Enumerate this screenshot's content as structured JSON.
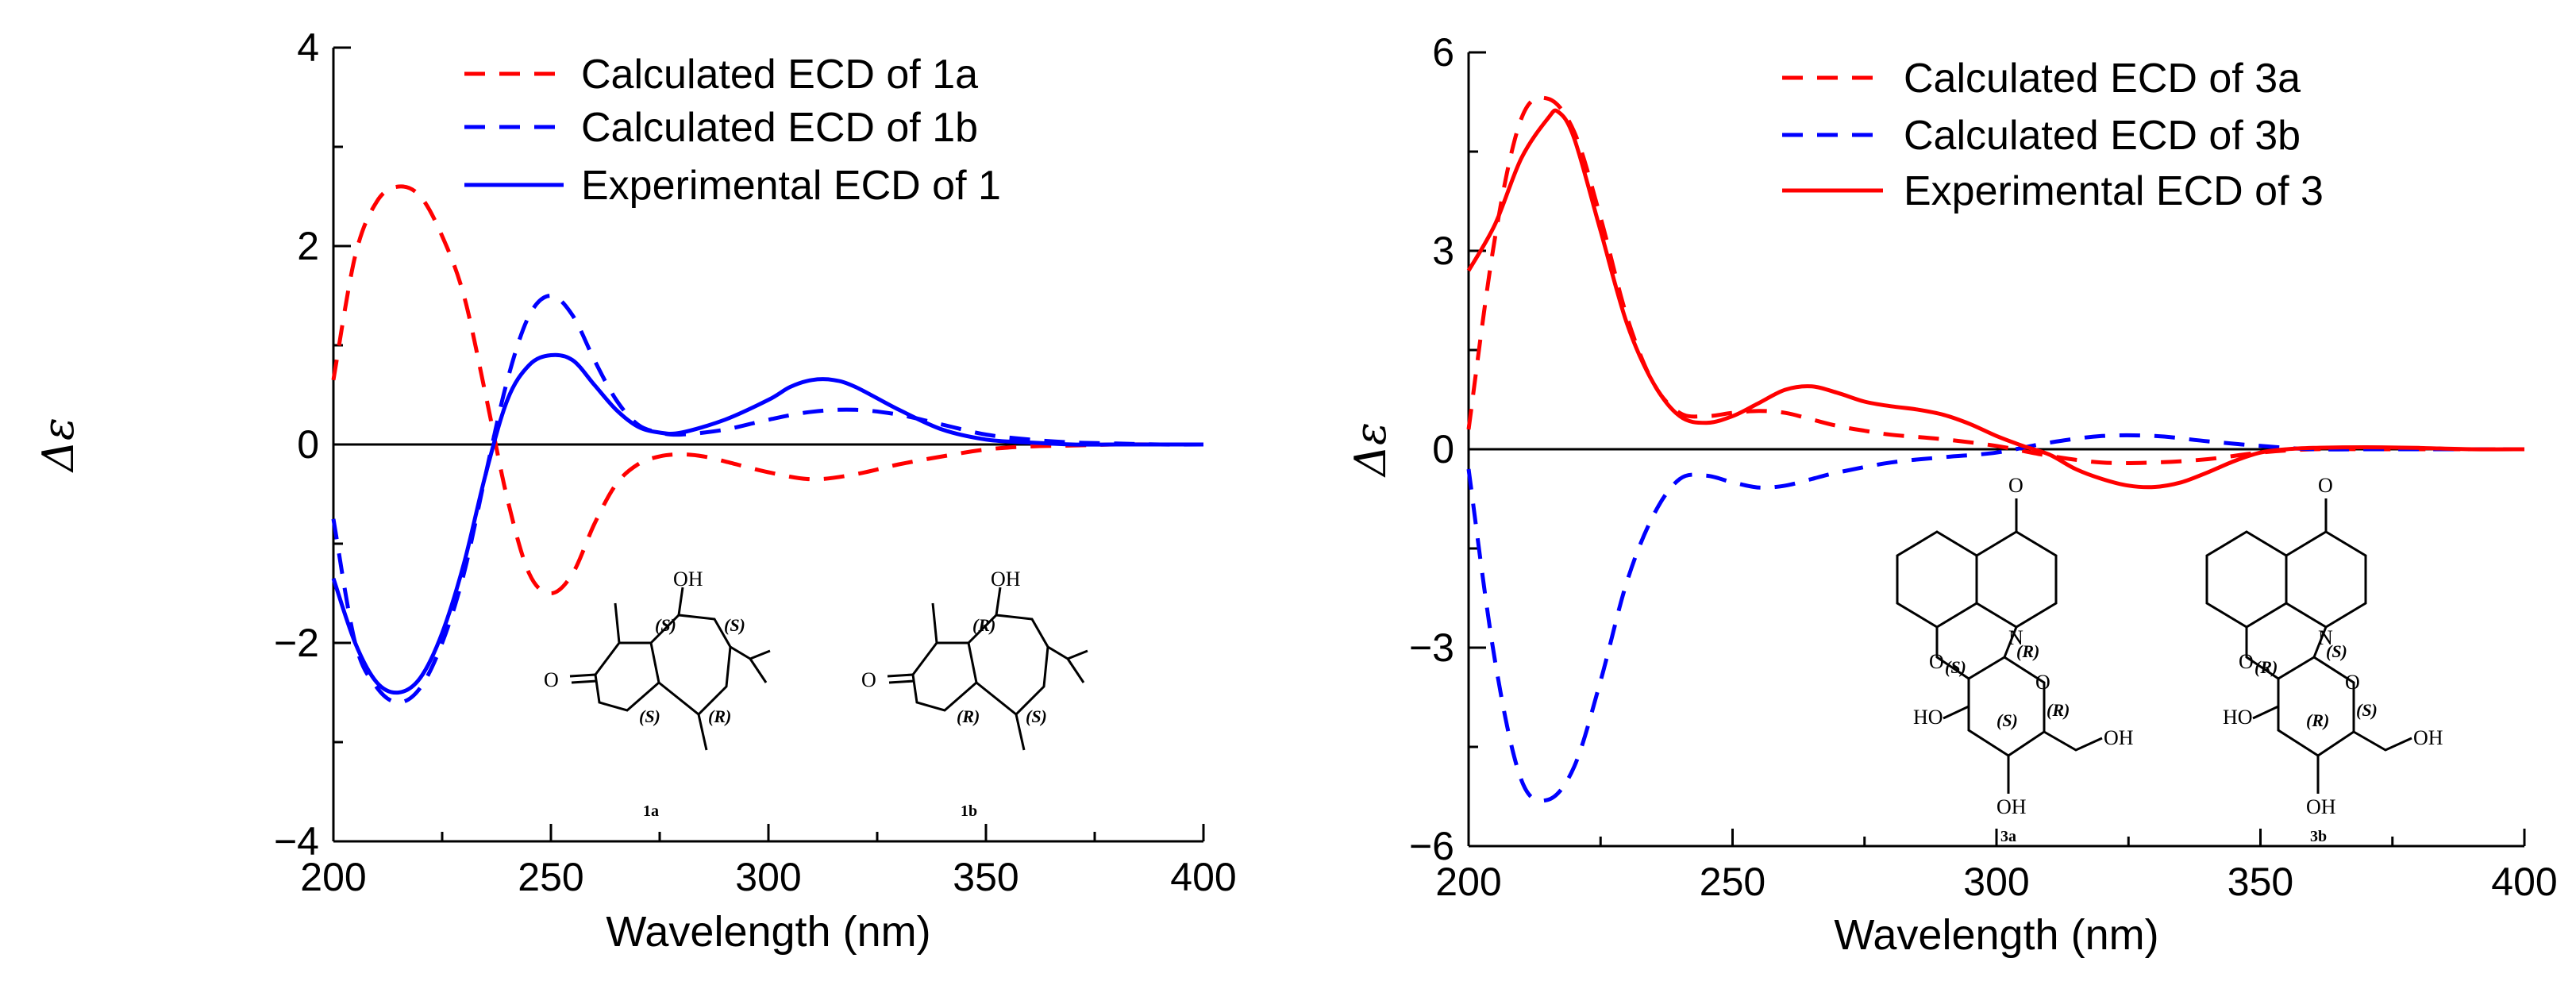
{
  "colors": {
    "red": "#ff0000",
    "blue": "#0000ff",
    "axis": "#000000"
  },
  "chart_data": [
    {
      "type": "line",
      "title": "",
      "xlabel": "Wavelength (nm)",
      "ylabel": "Δε",
      "xlim": [
        200,
        400
      ],
      "ylim": [
        -4,
        4
      ],
      "xticks": [
        200,
        250,
        300,
        350,
        400
      ],
      "yticks": [
        -4,
        -2,
        0,
        2,
        4
      ],
      "xtick_labels": [
        "200",
        "250",
        "300",
        "350",
        "400"
      ],
      "ytick_labels": [
        "−4",
        "−2",
        "0",
        "2",
        "4"
      ],
      "legend": {
        "position": "top-right"
      },
      "series": [
        {
          "name": "Calculated ECD of 1a",
          "color": "#ff0000",
          "style": "dashed",
          "x": [
            200,
            205,
            210,
            215,
            220,
            225,
            230,
            235,
            240,
            245,
            250,
            255,
            260,
            265,
            270,
            275,
            280,
            285,
            290,
            300,
            310,
            320,
            330,
            340,
            350,
            360,
            370,
            380,
            390,
            400
          ],
          "y": [
            0.65,
            1.9,
            2.45,
            2.6,
            2.5,
            2.1,
            1.5,
            0.5,
            -0.55,
            -1.3,
            -1.5,
            -1.3,
            -0.8,
            -0.4,
            -0.2,
            -0.12,
            -0.1,
            -0.12,
            -0.17,
            -0.28,
            -0.35,
            -0.3,
            -0.2,
            -0.12,
            -0.05,
            -0.02,
            -0.01,
            0,
            0,
            0
          ]
        },
        {
          "name": "Calculated ECD of 1b",
          "color": "#0000ff",
          "style": "dashed",
          "x": [
            200,
            205,
            210,
            215,
            220,
            225,
            230,
            235,
            240,
            245,
            250,
            255,
            260,
            265,
            270,
            275,
            280,
            290,
            300,
            310,
            320,
            330,
            340,
            350,
            360,
            370,
            380,
            390,
            400
          ],
          "y": [
            -0.75,
            -2.0,
            -2.45,
            -2.6,
            -2.45,
            -2.0,
            -1.3,
            -0.3,
            0.65,
            1.3,
            1.5,
            1.3,
            0.85,
            0.45,
            0.2,
            0.12,
            0.1,
            0.15,
            0.25,
            0.33,
            0.35,
            0.3,
            0.2,
            0.1,
            0.05,
            0.02,
            0.01,
            0,
            0
          ]
        },
        {
          "name": "Experimental ECD of 1",
          "color": "#0000ff",
          "style": "solid",
          "x": [
            200,
            205,
            210,
            215,
            220,
            225,
            230,
            235,
            240,
            245,
            250,
            255,
            260,
            265,
            270,
            275,
            280,
            290,
            300,
            305,
            310,
            315,
            320,
            330,
            340,
            350,
            360,
            370,
            380,
            390,
            400
          ],
          "y": [
            -1.35,
            -2.0,
            -2.4,
            -2.5,
            -2.35,
            -1.9,
            -1.2,
            -0.3,
            0.45,
            0.8,
            0.9,
            0.85,
            0.6,
            0.35,
            0.18,
            0.12,
            0.12,
            0.25,
            0.45,
            0.58,
            0.65,
            0.65,
            0.58,
            0.35,
            0.15,
            0.05,
            0.02,
            0,
            0,
            0,
            0
          ]
        }
      ],
      "structures": [
        {
          "label": "1a",
          "atoms": [
            "OH",
            "O"
          ],
          "stereo": [
            "(S)",
            "(S)",
            "(S)",
            "(R)"
          ]
        },
        {
          "label": "1b",
          "atoms": [
            "OH",
            "O"
          ],
          "stereo": [
            "(R)",
            "(R)",
            "(S)"
          ]
        }
      ]
    },
    {
      "type": "line",
      "title": "",
      "xlabel": "Wavelength (nm)",
      "ylabel": "Δε",
      "xlim": [
        200,
        400
      ],
      "ylim": [
        -6,
        6
      ],
      "xticks": [
        200,
        250,
        300,
        350,
        400
      ],
      "yticks": [
        -6,
        -3,
        0,
        3,
        6
      ],
      "xtick_labels": [
        "200",
        "250",
        "300",
        "350",
        "400"
      ],
      "ytick_labels": [
        "−6",
        "−3",
        "0",
        "3",
        "6"
      ],
      "legend": {
        "position": "top-right"
      },
      "series": [
        {
          "name": "Calculated ECD of 3a",
          "color": "#ff0000",
          "style": "dashed",
          "x": [
            200,
            205,
            210,
            215,
            220,
            225,
            230,
            235,
            240,
            245,
            250,
            255,
            260,
            265,
            270,
            275,
            280,
            290,
            300,
            310,
            320,
            330,
            340,
            350,
            360,
            370,
            380,
            390,
            400
          ],
          "y": [
            0.3,
            3.2,
            5.0,
            5.3,
            4.8,
            3.5,
            2.0,
            1.0,
            0.55,
            0.5,
            0.55,
            0.58,
            0.55,
            0.45,
            0.35,
            0.28,
            0.22,
            0.15,
            0.05,
            -0.1,
            -0.2,
            -0.2,
            -0.15,
            -0.05,
            0,
            0,
            0,
            0,
            0
          ]
        },
        {
          "name": "Calculated ECD of 3b",
          "color": "#0000ff",
          "style": "dashed",
          "x": [
            200,
            205,
            210,
            215,
            220,
            225,
            230,
            235,
            240,
            245,
            250,
            255,
            260,
            265,
            270,
            280,
            290,
            300,
            310,
            320,
            330,
            340,
            350,
            360,
            370,
            380,
            390,
            400
          ],
          "y": [
            -0.3,
            -3.2,
            -5.0,
            -5.3,
            -4.8,
            -3.5,
            -2.0,
            -1.0,
            -0.45,
            -0.4,
            -0.5,
            -0.58,
            -0.55,
            -0.45,
            -0.35,
            -0.2,
            -0.12,
            -0.05,
            0.1,
            0.2,
            0.2,
            0.12,
            0.05,
            0,
            0,
            0,
            0,
            0
          ]
        },
        {
          "name": "Experimental ECD of 3",
          "color": "#ff0000",
          "style": "solid",
          "x": [
            200,
            205,
            210,
            215,
            217,
            220,
            225,
            230,
            235,
            240,
            245,
            250,
            255,
            260,
            265,
            270,
            275,
            280,
            285,
            290,
            295,
            300,
            305,
            310,
            315,
            320,
            325,
            330,
            335,
            340,
            345,
            350,
            355,
            360,
            370,
            380,
            390,
            400
          ],
          "y": [
            2.7,
            3.4,
            4.4,
            5.0,
            5.1,
            4.7,
            3.3,
            1.9,
            1.0,
            0.5,
            0.4,
            0.5,
            0.7,
            0.9,
            0.95,
            0.85,
            0.72,
            0.65,
            0.6,
            0.52,
            0.38,
            0.2,
            0.05,
            -0.08,
            -0.3,
            -0.45,
            -0.55,
            -0.57,
            -0.5,
            -0.35,
            -0.18,
            -0.05,
            0,
            0.02,
            0.03,
            0.02,
            0,
            0
          ]
        }
      ],
      "structures": [
        {
          "label": "3a",
          "atoms": [
            "O",
            "N",
            "O",
            "O",
            "HO",
            "OH",
            "OH"
          ],
          "stereo": [
            "(R)",
            "(S)",
            "(S)",
            "(R)"
          ]
        },
        {
          "label": "3b",
          "atoms": [
            "O",
            "N",
            "O",
            "O",
            "HO",
            "OH",
            "OH"
          ],
          "stereo": [
            "(S)",
            "(R)",
            "(R)",
            "(S)"
          ]
        }
      ]
    }
  ]
}
